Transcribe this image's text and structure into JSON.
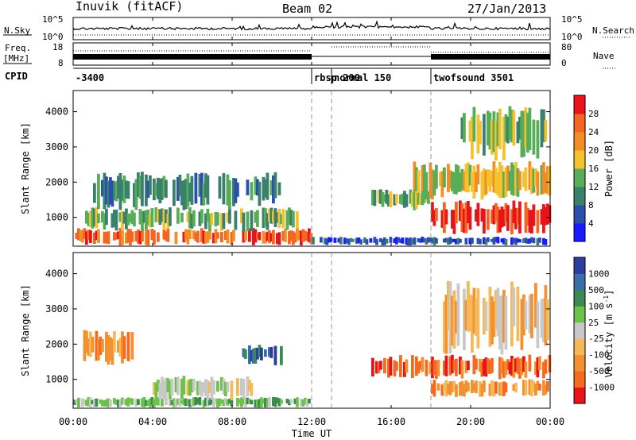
{
  "header": {
    "station": "Inuvik (fitACF)",
    "beam": "Beam 02",
    "date": "27/Jan/2013"
  },
  "noise_panel": {
    "left_label": "N.Sky",
    "left_ticks": [
      "10^5",
      "10^0"
    ],
    "right_label": "N.Search",
    "right_ticks": [
      "10^5",
      "10^0"
    ]
  },
  "freq_panel": {
    "left_label_1": "Freq.",
    "left_label_2": "[MHz]",
    "left_ticks": [
      "18",
      "8"
    ],
    "right_label": "Nave",
    "right_ticks": [
      "80",
      "0"
    ]
  },
  "cpid_panel": {
    "label": "CPID",
    "segments": [
      {
        "label": "-3400",
        "start_hour": 0
      },
      {
        "label": "rbsp 200",
        "start_hour": 12.0
      },
      {
        "label": "normal 150",
        "start_hour": 13.0
      },
      {
        "label": "twofsound 3501",
        "start_hour": 18.0
      }
    ]
  },
  "chart_data": [
    {
      "type": "heatmap",
      "title": "",
      "xlabel": "",
      "ylabel": "Slant Range [km]",
      "xlim": [
        0,
        24
      ],
      "ylim": [
        180,
        4600
      ],
      "y_ticks": [
        1000,
        2000,
        3000,
        4000
      ],
      "colorbar": {
        "label": "Power [dB]",
        "ticks": [
          4,
          8,
          12,
          16,
          20,
          24,
          28
        ],
        "colors": [
          "#1a1aff",
          "#2a4faf",
          "#3b7f6e",
          "#58ad58",
          "#f3c22e",
          "#f28c24",
          "#f26522",
          "#e8141a"
        ]
      },
      "regions": [
        {
          "t0": 0.0,
          "t1": 12.0,
          "r0": 200,
          "r1": 700,
          "level": 6
        },
        {
          "t0": 0.5,
          "t1": 11.5,
          "r0": 600,
          "r1": 1300,
          "level": 3
        },
        {
          "t0": 1.0,
          "t1": 10.5,
          "r0": 1200,
          "r1": 2300,
          "level": 2
        },
        {
          "t0": 12.0,
          "t1": 24.0,
          "r0": 200,
          "r1": 450,
          "level": 1
        },
        {
          "t0": 15.0,
          "t1": 18.0,
          "r0": 1200,
          "r1": 1800,
          "level": 3
        },
        {
          "t0": 18.0,
          "t1": 24.0,
          "r0": 500,
          "r1": 1500,
          "level": 7
        },
        {
          "t0": 17.0,
          "t1": 24.0,
          "r0": 1500,
          "r1": 2600,
          "level": 4
        },
        {
          "t0": 19.5,
          "t1": 24.0,
          "r0": 2600,
          "r1": 4200,
          "level": 3
        }
      ]
    },
    {
      "type": "heatmap",
      "title": "",
      "xlabel": "Time UT",
      "ylabel": "Slant Range [km]",
      "xlim": [
        0,
        24
      ],
      "ylim": [
        180,
        4600
      ],
      "x_ticks": [
        "00:00",
        "04:00",
        "08:00",
        "12:00",
        "16:00",
        "20:00",
        "00:00"
      ],
      "y_ticks": [
        1000,
        2000,
        3000,
        4000
      ],
      "colorbar": {
        "label": "Velocity [m s^-1]",
        "ticks": [
          1000,
          500,
          100,
          25,
          -25,
          -100,
          -500,
          -1000
        ],
        "colors": [
          "#2c3e9c",
          "#3b6ea5",
          "#3b8a52",
          "#6cc24a",
          "#c8c8c8",
          "#f5b95a",
          "#f39130",
          "#f56a20",
          "#e8141a"
        ]
      },
      "regions": [
        {
          "t0": 0.0,
          "t1": 12.0,
          "r0": 200,
          "r1": 500,
          "level": 3
        },
        {
          "t0": 4.0,
          "t1": 9.0,
          "r0": 400,
          "r1": 1100,
          "level": 4
        },
        {
          "t0": 0.5,
          "t1": 3.0,
          "r0": 1400,
          "r1": 2400,
          "level": 6
        },
        {
          "t0": 8.5,
          "t1": 10.5,
          "r0": 1400,
          "r1": 2000,
          "level": 1
        },
        {
          "t0": 15.0,
          "t1": 24.0,
          "r0": 1000,
          "r1": 1700,
          "level": 7
        },
        {
          "t0": 18.0,
          "t1": 24.0,
          "r0": 500,
          "r1": 1000,
          "level": 6
        },
        {
          "t0": 18.5,
          "t1": 24.0,
          "r0": 1700,
          "r1": 3800,
          "level": 5
        }
      ]
    }
  ]
}
